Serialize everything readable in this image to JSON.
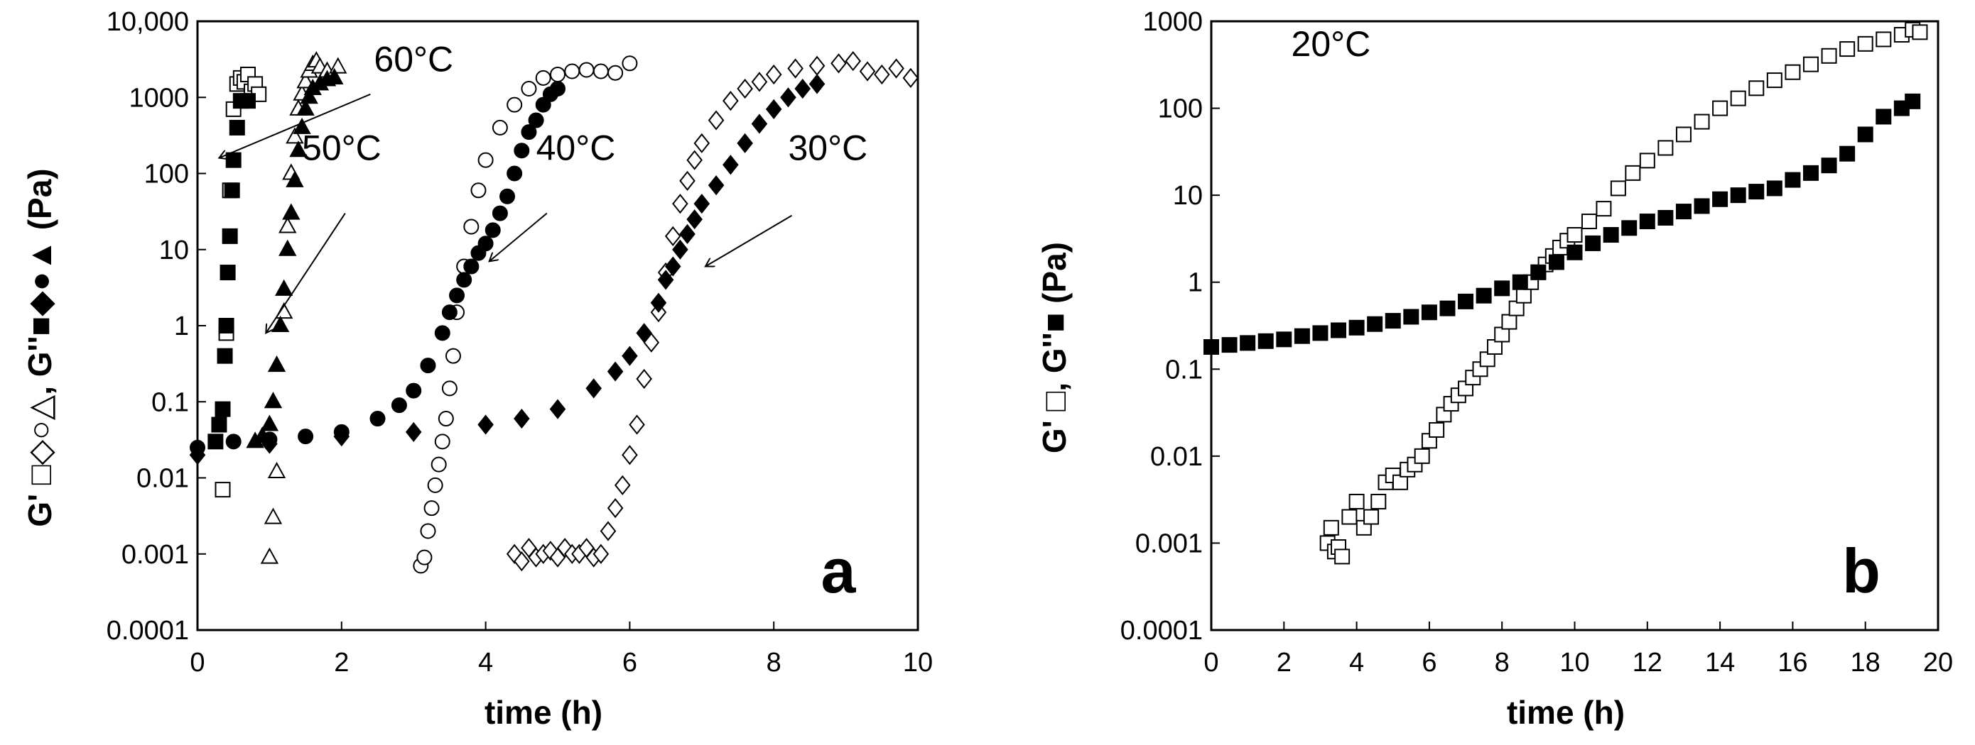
{
  "chart_data": [
    {
      "panel": "a",
      "type": "scatter",
      "title": "",
      "panel_label": "a",
      "xlabel": "time (h)",
      "ylabel_parts": [
        "G' ",
        "□◇○△",
        ", G''",
        "■◆●▲",
        " (Pa)"
      ],
      "xlim": [
        0,
        10
      ],
      "ylim": [
        0.0001,
        10000
      ],
      "yscale": "log",
      "xticks": [
        0,
        2,
        4,
        6,
        8,
        10
      ],
      "xtick_labels": [
        "0",
        "2",
        "4",
        "6",
        "8",
        "10"
      ],
      "yticks": [
        0.0001,
        0.001,
        0.01,
        0.1,
        1,
        10,
        100,
        1000,
        10000
      ],
      "ytick_labels": [
        "0.0001",
        "0.001",
        "0.01",
        "0.1",
        "1",
        "10",
        "100",
        "1000",
        "10,000"
      ],
      "annotations": [
        {
          "text": "60°C",
          "x": 2.45,
          "y": 2200,
          "arrow_from": [
            2.4,
            1100
          ],
          "arrow_to": [
            0.3,
            160
          ]
        },
        {
          "text": "50°C",
          "x": 1.45,
          "y": 150,
          "arrow_from": [
            2.05,
            30
          ],
          "arrow_to": [
            0.95,
            0.8
          ]
        },
        {
          "text": "40°C",
          "x": 4.7,
          "y": 150,
          "arrow_from": [
            4.85,
            30
          ],
          "arrow_to": [
            4.05,
            7
          ]
        },
        {
          "text": "30°C",
          "x": 8.2,
          "y": 150,
          "arrow_from": [
            8.25,
            28
          ],
          "arrow_to": [
            7.05,
            6
          ]
        }
      ],
      "series": [
        {
          "name": "G' 60°C",
          "marker": "square",
          "filled": false,
          "x": [
            0.35,
            0.4,
            0.45,
            0.5,
            0.55,
            0.6,
            0.65,
            0.7,
            0.75,
            0.8,
            0.85
          ],
          "y": [
            0.007,
            0.8,
            60,
            700,
            1500,
            1800,
            1600,
            2000,
            1200,
            1500,
            1100
          ]
        },
        {
          "name": "G'' 60°C",
          "marker": "square",
          "filled": true,
          "x": [
            0.25,
            0.3,
            0.35,
            0.38,
            0.4,
            0.42,
            0.45,
            0.48,
            0.5,
            0.55,
            0.6,
            0.7
          ],
          "y": [
            0.03,
            0.05,
            0.08,
            0.4,
            1,
            5,
            15,
            60,
            150,
            400,
            900,
            900
          ]
        },
        {
          "name": "G' 50°C",
          "marker": "triangle",
          "filled": false,
          "x": [
            1.0,
            1.05,
            1.1,
            1.2,
            1.25,
            1.3,
            1.35,
            1.4,
            1.45,
            1.5,
            1.55,
            1.6,
            1.65,
            1.7,
            1.8,
            1.9,
            1.95
          ],
          "y": [
            0.0009,
            0.003,
            0.012,
            1.5,
            20,
            100,
            300,
            700,
            1100,
            1600,
            2200,
            2700,
            3000,
            2500,
            2200,
            1800,
            2500
          ]
        },
        {
          "name": "G'' 50°C",
          "marker": "triangle",
          "filled": true,
          "x": [
            0.8,
            0.9,
            1.0,
            1.05,
            1.1,
            1.15,
            1.2,
            1.25,
            1.3,
            1.35,
            1.4,
            1.45,
            1.5,
            1.55,
            1.6,
            1.7,
            1.8,
            1.9
          ],
          "y": [
            0.03,
            0.035,
            0.05,
            0.1,
            0.3,
            1,
            3,
            10,
            30,
            80,
            200,
            400,
            700,
            1000,
            1300,
            1500,
            1700,
            1800
          ]
        },
        {
          "name": "G' 40°C",
          "marker": "circle",
          "filled": false,
          "x": [
            3.1,
            3.15,
            3.2,
            3.25,
            3.3,
            3.35,
            3.4,
            3.45,
            3.5,
            3.55,
            3.6,
            3.7,
            3.8,
            3.9,
            4.0,
            4.2,
            4.4,
            4.6,
            4.8,
            5.0,
            5.2,
            5.4,
            5.6,
            5.8,
            6.0
          ],
          "y": [
            0.0007,
            0.0009,
            0.002,
            0.004,
            0.008,
            0.015,
            0.03,
            0.06,
            0.15,
            0.4,
            1.5,
            6,
            20,
            60,
            150,
            400,
            800,
            1300,
            1800,
            2000,
            2200,
            2300,
            2200,
            2100,
            2800
          ]
        },
        {
          "name": "G'' 40°C",
          "marker": "circle",
          "filled": true,
          "x": [
            0.0,
            0.5,
            1.0,
            1.5,
            2.0,
            2.5,
            2.8,
            3.0,
            3.2,
            3.4,
            3.5,
            3.6,
            3.7,
            3.8,
            3.9,
            4.0,
            4.1,
            4.2,
            4.3,
            4.4,
            4.5,
            4.6,
            4.7,
            4.8,
            4.9,
            5.0
          ],
          "y": [
            0.025,
            0.03,
            0.032,
            0.035,
            0.04,
            0.06,
            0.09,
            0.14,
            0.3,
            0.8,
            1.5,
            2.5,
            4,
            6,
            9,
            12,
            18,
            30,
            50,
            100,
            200,
            350,
            500,
            800,
            1100,
            1300
          ]
        },
        {
          "name": "G' 30°C",
          "marker": "diamond",
          "filled": false,
          "x": [
            4.4,
            4.5,
            4.6,
            4.7,
            4.8,
            4.9,
            5.0,
            5.1,
            5.2,
            5.3,
            5.4,
            5.5,
            5.6,
            5.7,
            5.8,
            5.9,
            6.0,
            6.1,
            6.2,
            6.3,
            6.4,
            6.5,
            6.6,
            6.7,
            6.8,
            6.9,
            7.0,
            7.2,
            7.4,
            7.6,
            7.8,
            8.0,
            8.3,
            8.6,
            8.9,
            9.1,
            9.3,
            9.5,
            9.7,
            9.9
          ],
          "y": [
            0.001,
            0.0008,
            0.0012,
            0.0009,
            0.001,
            0.0011,
            0.0009,
            0.0012,
            0.001,
            0.001,
            0.0012,
            0.0009,
            0.001,
            0.002,
            0.004,
            0.008,
            0.02,
            0.05,
            0.2,
            0.6,
            1.5,
            5,
            15,
            40,
            80,
            150,
            250,
            500,
            900,
            1300,
            1600,
            2000,
            2400,
            2600,
            2800,
            3000,
            2200,
            2000,
            2400,
            1800
          ]
        },
        {
          "name": "G'' 30°C",
          "marker": "diamond",
          "filled": true,
          "x": [
            0.0,
            1.0,
            2.0,
            3.0,
            4.0,
            4.5,
            5.0,
            5.5,
            5.8,
            6.0,
            6.2,
            6.4,
            6.5,
            6.6,
            6.7,
            6.8,
            6.9,
            7.0,
            7.2,
            7.4,
            7.6,
            7.8,
            8.0,
            8.2,
            8.4,
            8.6
          ],
          "y": [
            0.02,
            0.028,
            0.035,
            0.04,
            0.05,
            0.06,
            0.08,
            0.15,
            0.25,
            0.4,
            0.8,
            2,
            4,
            6,
            10,
            16,
            25,
            40,
            70,
            130,
            250,
            450,
            700,
            1000,
            1300,
            1500
          ]
        }
      ]
    },
    {
      "panel": "b",
      "type": "scatter",
      "title": "",
      "panel_label": "b",
      "xlabel": "time (h)",
      "ylabel_parts": [
        "G' ",
        "□",
        ", G''",
        "■",
        " (Pa)"
      ],
      "xlim": [
        0,
        20
      ],
      "ylim": [
        0.0001,
        1000
      ],
      "yscale": "log",
      "xticks": [
        0,
        2,
        4,
        6,
        8,
        10,
        12,
        14,
        16,
        18,
        20
      ],
      "xtick_labels": [
        "0",
        "2",
        "4",
        "6",
        "8",
        "10",
        "12",
        "14",
        "16",
        "18",
        "20"
      ],
      "yticks": [
        0.0001,
        0.001,
        0.01,
        0.1,
        1,
        10,
        100,
        1000
      ],
      "ytick_labels": [
        "0.0001",
        "0.001",
        "0.01",
        "0.1",
        "1",
        "10",
        "100",
        "1000"
      ],
      "annotations": [
        {
          "text": "20°C",
          "x": 2.2,
          "y": 400
        }
      ],
      "series": [
        {
          "name": "G' 20°C",
          "marker": "square",
          "filled": false,
          "x": [
            3.2,
            3.3,
            3.4,
            3.5,
            3.6,
            3.8,
            4.0,
            4.2,
            4.4,
            4.6,
            4.8,
            5.0,
            5.2,
            5.4,
            5.6,
            5.8,
            6.0,
            6.2,
            6.4,
            6.6,
            6.8,
            7.0,
            7.2,
            7.4,
            7.6,
            7.8,
            8.0,
            8.2,
            8.4,
            8.6,
            8.8,
            9.0,
            9.2,
            9.4,
            9.6,
            9.8,
            10.0,
            10.4,
            10.8,
            11.2,
            11.6,
            12.0,
            12.5,
            13.0,
            13.5,
            14.0,
            14.5,
            15.0,
            15.5,
            16.0,
            16.5,
            17.0,
            17.5,
            18.0,
            18.5,
            19.0,
            19.3,
            19.5
          ],
          "y": [
            0.001,
            0.0015,
            0.0008,
            0.0009,
            0.0007,
            0.002,
            0.003,
            0.0015,
            0.002,
            0.003,
            0.005,
            0.006,
            0.005,
            0.007,
            0.008,
            0.01,
            0.015,
            0.02,
            0.03,
            0.04,
            0.05,
            0.06,
            0.08,
            0.1,
            0.13,
            0.18,
            0.25,
            0.35,
            0.5,
            0.7,
            1.0,
            1.3,
            1.6,
            2.0,
            2.5,
            3.0,
            3.5,
            5,
            7,
            12,
            18,
            25,
            35,
            50,
            70,
            100,
            130,
            170,
            210,
            260,
            320,
            400,
            480,
            550,
            620,
            700,
            800,
            750
          ]
        },
        {
          "name": "G'' 20°C",
          "marker": "square",
          "filled": true,
          "x": [
            0.0,
            0.5,
            1.0,
            1.5,
            2.0,
            2.5,
            3.0,
            3.5,
            4.0,
            4.5,
            5.0,
            5.5,
            6.0,
            6.5,
            7.0,
            7.5,
            8.0,
            8.5,
            9.0,
            9.5,
            10.0,
            10.5,
            11.0,
            11.5,
            12.0,
            12.5,
            13.0,
            13.5,
            14.0,
            14.5,
            15.0,
            15.5,
            16.0,
            16.5,
            17.0,
            17.5,
            18.0,
            18.5,
            19.0,
            19.3
          ],
          "y": [
            0.18,
            0.19,
            0.2,
            0.21,
            0.22,
            0.24,
            0.26,
            0.28,
            0.3,
            0.33,
            0.36,
            0.4,
            0.45,
            0.5,
            0.6,
            0.7,
            0.85,
            1.0,
            1.3,
            1.7,
            2.2,
            2.8,
            3.5,
            4.2,
            5,
            5.5,
            6.5,
            7.5,
            9,
            10,
            11,
            12,
            15,
            18,
            22,
            30,
            50,
            80,
            100,
            120
          ]
        }
      ]
    }
  ]
}
